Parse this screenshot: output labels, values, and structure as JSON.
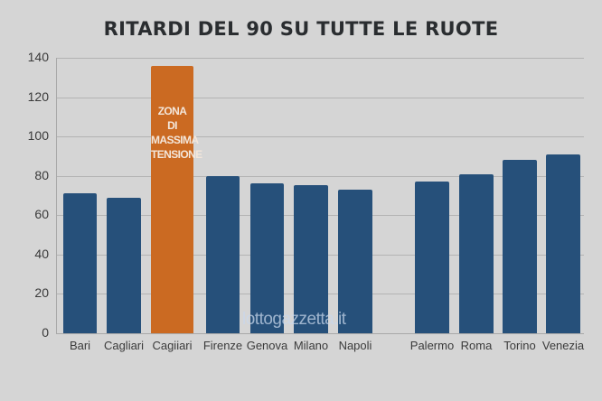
{
  "chart_data": {
    "type": "bar",
    "title": "RITARDI DEL 90 SU TUTTE LE RUOTE",
    "xlabel": "",
    "ylabel": "",
    "ylim": [
      0,
      140
    ],
    "yticks": [
      0,
      20,
      40,
      60,
      80,
      100,
      120,
      140
    ],
    "grid": true,
    "categories": [
      "Bari",
      "Cagliari",
      "Cagiiari",
      "Firenze",
      "Genova",
      "Milano",
      "Napoli",
      "Palermo",
      "Roma",
      "Torino",
      "Venezia"
    ],
    "values": [
      71,
      69,
      136,
      80,
      76,
      75.5,
      73,
      77,
      81,
      88,
      91
    ],
    "highlight_index": 2,
    "annotations": [
      {
        "category": "Cagiiari",
        "text": "ZONA\nDI\nMASSIMA\nTENSIONE"
      }
    ],
    "colors": {
      "default": "#26507a",
      "highlight": "#cb6a22",
      "background": "#d5d5d5"
    }
  },
  "header": {
    "title": "RITARDI DEL 90 SU TUTTE LE RUOTE"
  },
  "yaxis": {
    "ticks": [
      "0",
      "20",
      "40",
      "60",
      "80",
      "100",
      "120",
      "140"
    ]
  },
  "xaxis": {
    "labels": [
      "Bari",
      "Cagliari",
      "Cagiiari",
      "Firenze",
      "Genova",
      "Milano",
      "Napoli",
      "Palermo",
      "Roma",
      "Torino",
      "Venezia"
    ]
  },
  "annotation": {
    "text": "ZONA\nDI\nMASSIMA\nTENSIONE"
  },
  "watermark": {
    "text": "lottogazzetta.it"
  }
}
